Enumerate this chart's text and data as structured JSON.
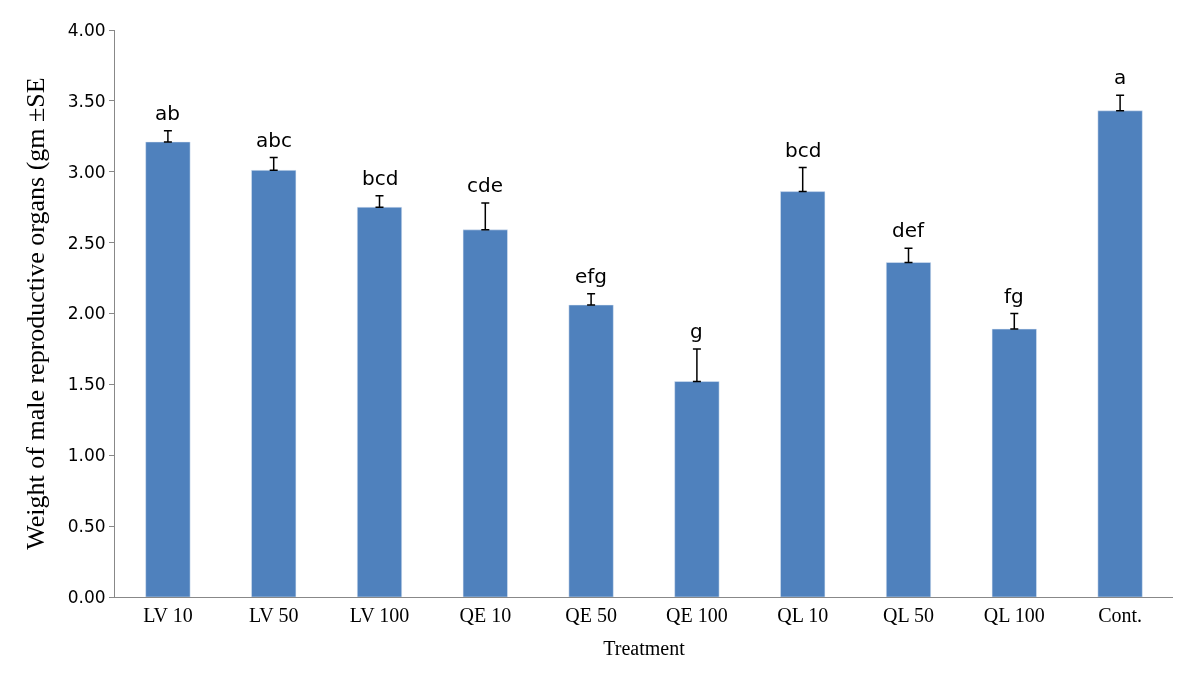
{
  "chart_data": {
    "type": "bar",
    "xlabel": "Treatment",
    "ylabel": "Weight of male reproductive organs (gm ±SE",
    "categories": [
      "LV 10",
      "LV 50",
      "LV 100",
      "QE 10",
      "QE 50",
      "QE 100",
      "QL 10",
      "QL 50",
      "QL 100",
      "Cont."
    ],
    "values": [
      3.21,
      3.01,
      2.75,
      2.59,
      2.06,
      1.52,
      2.86,
      2.36,
      1.89,
      3.43
    ],
    "errors": [
      [
        3.21,
        3.29
      ],
      [
        3.01,
        3.1
      ],
      [
        2.75,
        2.83
      ],
      [
        2.59,
        2.78
      ],
      [
        2.06,
        2.14
      ],
      [
        1.52,
        1.75
      ],
      [
        2.86,
        3.03
      ],
      [
        2.36,
        2.46
      ],
      [
        1.89,
        2.0
      ],
      [
        3.43,
        3.54
      ]
    ],
    "color": "#4f81bd",
    "ylim": [
      0,
      4
    ],
    "yticks": [
      {
        "value": 0,
        "label": "0.00"
      },
      {
        "value": 0.5,
        "label": "0.50"
      },
      {
        "value": 1,
        "label": "1.00"
      },
      {
        "value": 1.5,
        "label": "1.50"
      },
      {
        "value": 2,
        "label": "2.00"
      },
      {
        "value": 2.5,
        "label": "2.50"
      },
      {
        "value": 3,
        "label": "3.00"
      },
      {
        "value": 3.5,
        "label": "3.50"
      },
      {
        "value": 4,
        "label": "4.00"
      }
    ],
    "legend": false,
    "annotations": [
      {
        "text": "ab",
        "x": "LV 10",
        "y": 3.29
      },
      {
        "text": "abc",
        "x": "LV 50",
        "y": 3.1
      },
      {
        "text": "bcd",
        "x": "LV 100",
        "y": 2.83
      },
      {
        "text": "cde",
        "x": "QE 10",
        "y": 2.78
      },
      {
        "text": "efg",
        "x": "QE 50",
        "y": 2.14
      },
      {
        "text": "g",
        "x": "QE 100",
        "y": 1.75
      },
      {
        "text": "bcd",
        "x": "QL 10",
        "y": 3.03
      },
      {
        "text": "def",
        "x": "QL 50",
        "y": 2.46
      },
      {
        "text": "fg",
        "x": "QL 100",
        "y": 2.0
      },
      {
        "text": "a",
        "x": "Cont.",
        "y": 3.54
      }
    ]
  }
}
